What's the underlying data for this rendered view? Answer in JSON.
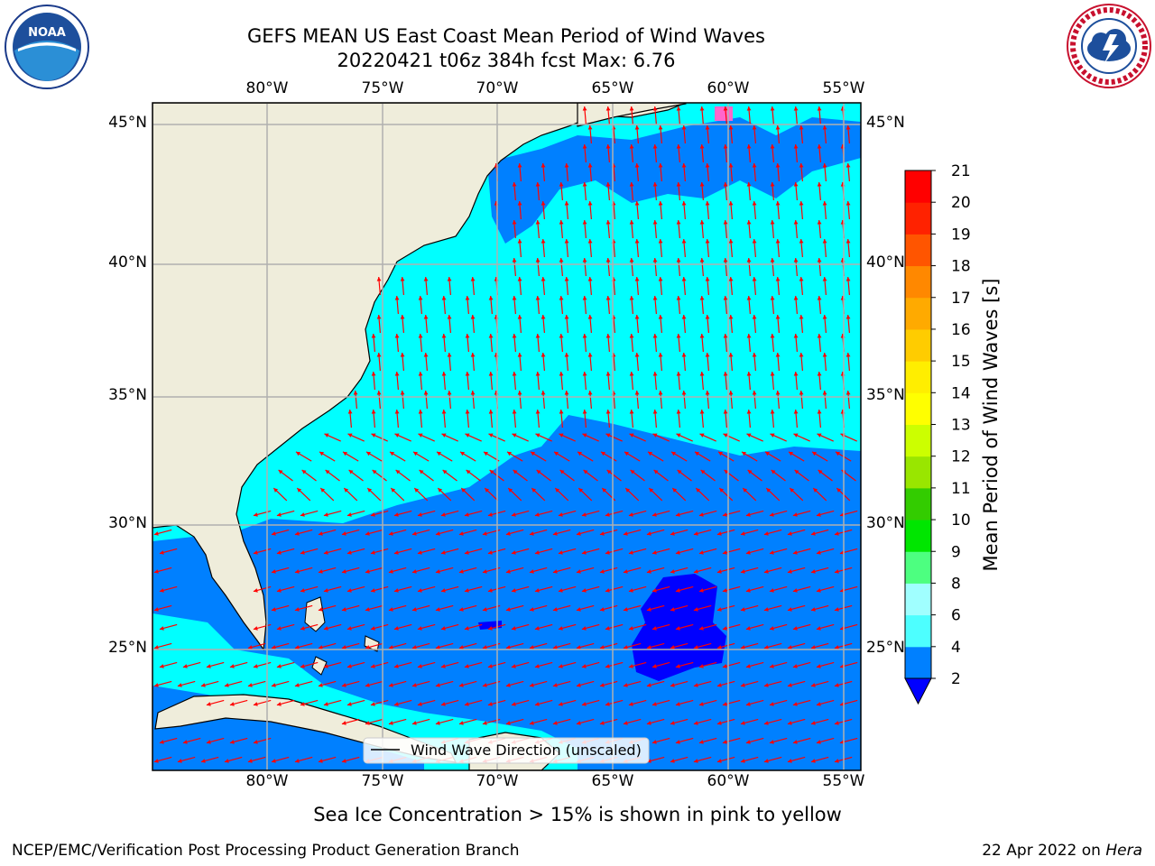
{
  "title": {
    "line1": "GEFS MEAN US East Coast Mean Period of Wind Waves",
    "line2": "20220421 t06z 384h fcst   Max: 6.76"
  },
  "logos": {
    "left": {
      "text": "NOAA",
      "icon": "noaa-logo-icon"
    },
    "right": {
      "icon": "nws-logo-icon"
    }
  },
  "map": {
    "lon_ticks": [
      "80°W",
      "75°W",
      "70°W",
      "65°W",
      "60°W",
      "55°W"
    ],
    "lat_ticks_left": [
      "45°N",
      "40°N",
      "35°N",
      "30°N",
      "25°N"
    ],
    "lat_ticks_right": [
      "45°N",
      "40°N",
      "35°N",
      "30°N",
      "25°N"
    ],
    "legend_label": "Wind Wave Direction (unscaled)",
    "arrow_color": "#ff0000",
    "land_color": "#efeddb",
    "grid": true
  },
  "colorbar": {
    "label": "Mean Period of Wind Waves [s]",
    "ticks": [
      "2",
      "4",
      "6",
      "8",
      "9",
      "10",
      "11",
      "12",
      "13",
      "14",
      "15",
      "16",
      "17",
      "18",
      "19",
      "20",
      "21"
    ],
    "colors": [
      "#0080ff",
      "#00ffff",
      "#4dffff",
      "#a0ffff",
      "#4dff80",
      "#00e600",
      "#33cc00",
      "#99e600",
      "#ccff00",
      "#ffff00",
      "#ffee00",
      "#ffcc00",
      "#ffaa00",
      "#ff8800",
      "#ff5500",
      "#ff2200",
      "#ff0000"
    ],
    "extend_color": "#0000ff"
  },
  "subtitle": "Sea Ice Concentration > 15% is shown in pink to yellow",
  "footer": {
    "left": "NCEP/EMC/Verification Post Processing Product Generation Branch",
    "date": "22 Apr 2022 on",
    "machine": "Hera"
  }
}
